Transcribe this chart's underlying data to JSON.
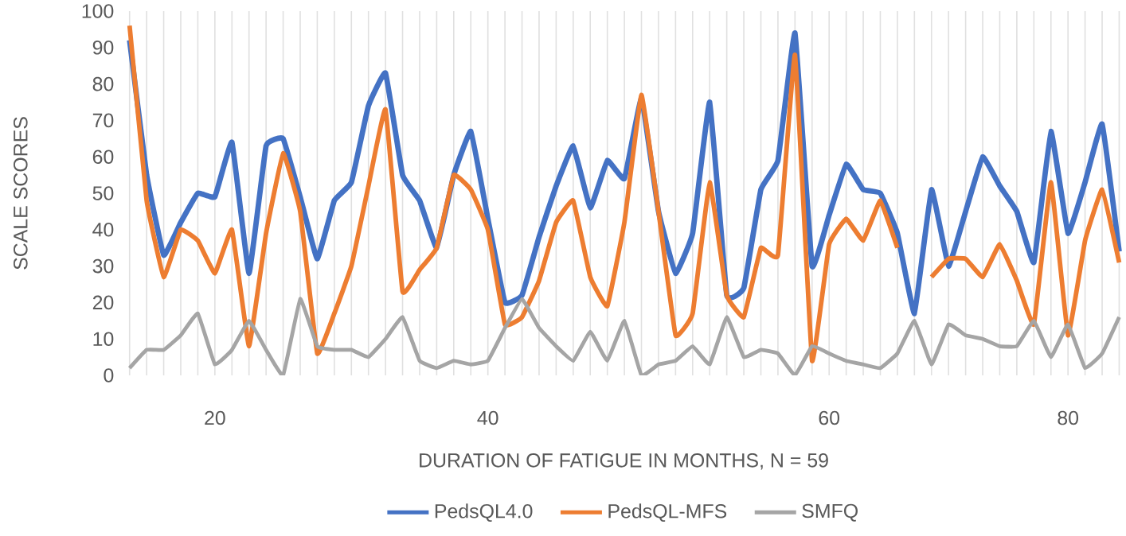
{
  "chart_data": {
    "type": "line",
    "xlabel": "DURATION OF FATIGUE IN MONTHS, N = 59",
    "ylabel": "SCALE SCORES",
    "categories": [
      null,
      null,
      null,
      null,
      null,
      "20",
      null,
      null,
      null,
      null,
      null,
      null,
      null,
      null,
      null,
      null,
      null,
      null,
      null,
      null,
      null,
      "40",
      null,
      null,
      null,
      null,
      null,
      null,
      null,
      null,
      null,
      null,
      null,
      null,
      null,
      null,
      null,
      null,
      null,
      null,
      null,
      "60",
      null,
      null,
      null,
      null,
      null,
      null,
      null,
      null,
      null,
      null,
      null,
      null,
      null,
      "80",
      null,
      null,
      null
    ],
    "ylim": [
      0,
      100
    ],
    "yticks": [
      0,
      10,
      20,
      30,
      40,
      50,
      60,
      70,
      80,
      90,
      100
    ],
    "grid": "x",
    "legend": "bottom",
    "series": [
      {
        "name": "PedsQL4.0",
        "color": "#4472c4",
        "values": [
          92,
          55,
          33,
          42,
          50,
          49,
          64,
          28,
          63,
          65,
          49,
          32,
          48,
          53,
          74,
          83,
          55,
          48,
          35,
          55,
          67,
          43,
          20,
          22,
          38,
          52,
          63,
          46,
          59,
          54,
          76,
          45,
          28,
          39,
          75,
          22,
          24,
          51,
          59,
          94,
          30,
          44,
          58,
          51,
          50,
          39,
          17,
          51,
          30,
          45,
          60,
          52,
          45,
          31,
          67,
          39,
          53,
          69,
          34
        ]
      },
      {
        "name": "PedsQL-MFS",
        "color": "#ed7d31",
        "values": [
          96,
          48,
          27,
          40,
          37,
          28,
          40,
          8,
          39,
          61,
          45,
          6,
          17,
          30,
          52,
          73,
          23,
          29,
          35,
          55,
          51,
          40,
          14,
          16,
          26,
          42,
          48,
          27,
          19,
          42,
          77,
          45,
          11,
          17,
          53,
          22,
          16,
          35,
          33,
          88,
          4,
          36,
          43,
          37,
          48,
          35,
          null,
          27,
          32,
          32,
          27,
          36,
          26,
          14,
          53,
          11,
          37,
          51,
          31
        ]
      },
      {
        "name": "SMFQ",
        "color": "#a5a5a5",
        "values": [
          2,
          7,
          7,
          11,
          17,
          3,
          7,
          15,
          7,
          0,
          21,
          8,
          7,
          7,
          5,
          10,
          16,
          4,
          2,
          4,
          3,
          4,
          13,
          21,
          13,
          8,
          4,
          12,
          4,
          15,
          0,
          3,
          4,
          8,
          3,
          16,
          5,
          7,
          6,
          0,
          8,
          6,
          4,
          3,
          2,
          6,
          15,
          3,
          14,
          11,
          10,
          8,
          8,
          15,
          5,
          14,
          2,
          6,
          16
        ]
      }
    ]
  }
}
